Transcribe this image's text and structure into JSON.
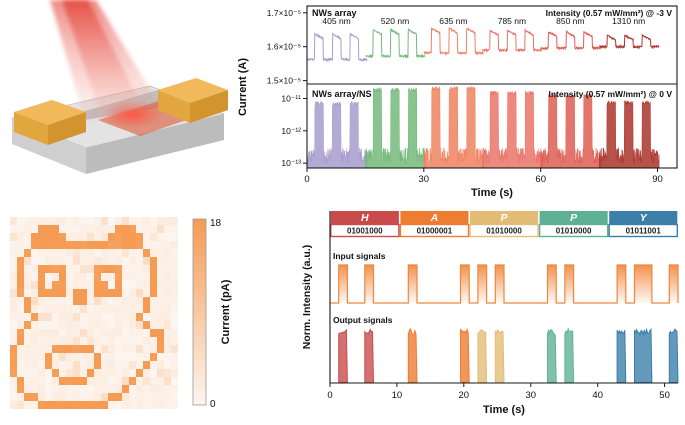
{
  "panel_a": {
    "colors": {
      "beam_top": "#e23c31",
      "beam_bottom": "#f6a99f",
      "glow": "#ff4d3a",
      "substrate_top": "#e3e3e3",
      "substrate_front": "#bcbcbc",
      "substrate_side": "#cfcfcf",
      "electrode_top": "#f2b95c",
      "electrode_front": "#d2952e",
      "electrode_side": "#e2a63e",
      "nanowire": "#bdbdbd",
      "film": "#dc4a28"
    }
  },
  "panel_b": {
    "ylabel": "Current (A)",
    "xlabel": "Time (s)",
    "x_ticks": [
      0,
      30,
      60,
      90
    ],
    "x_max": 95,
    "top": {
      "series_label": "NWs array",
      "annotation": "Intensity (0.57 mW/mm²) @ -3 V",
      "y_tick_labels": [
        "1.7×10⁻⁵",
        "1.6×10⁻⁵",
        "1.5×10⁻⁵"
      ],
      "y_tick_values": [
        1.7,
        1.6,
        1.5
      ]
    },
    "bottom": {
      "series_label": "NWs array/NS",
      "annotation": "Intensity (0.57 mW/mm²) @ 0 V",
      "y_tick_labels": [
        "10⁻¹¹",
        "10⁻¹²",
        "10⁻¹³"
      ],
      "y_tick_exponents": [
        -11,
        -12,
        -13
      ]
    },
    "pulse_on_s": 2.2,
    "pulse_off_s": 2.3,
    "pulses_per_group": 3,
    "groups": [
      {
        "label": "405 nm",
        "color": "#a79cce",
        "start": 2,
        "top_base": 1.562,
        "top_peak": 1.638,
        "bottom_peak_A": 7e-12
      },
      {
        "label": "520 nm",
        "color": "#74b87a",
        "start": 17,
        "top_base": 1.572,
        "top_peak": 1.65,
        "bottom_peak_A": 1.9e-11
      },
      {
        "label": "635 nm",
        "color": "#ef8261",
        "start": 32,
        "top_base": 1.582,
        "top_peak": 1.654,
        "bottom_peak_A": 2.1e-11
      },
      {
        "label": "785 nm",
        "color": "#ea7468",
        "start": 47,
        "top_base": 1.59,
        "top_peak": 1.648,
        "bottom_peak_A": 1.5e-11
      },
      {
        "label": "850 nm",
        "color": "#de5e52",
        "start": 62,
        "top_base": 1.596,
        "top_peak": 1.644,
        "bottom_peak_A": 1.2e-11
      },
      {
        "label": "1310 nm",
        "color": "#ac352c",
        "start": 77,
        "top_base": 1.6,
        "top_peak": 1.634,
        "bottom_peak_A": 7.5e-12
      }
    ]
  },
  "panel_c": {
    "colorbar_label": "Current (pA)",
    "colorbar_max_label": "18",
    "colorbar_min_label": "0",
    "value_max": 18,
    "value_min": 0,
    "color_high": "#f59b53",
    "color_low": "#fdf5ef",
    "grid": [
      "........................",
      "....###........###......",
      "...#####......#####.....",
      "...################.....",
      "..#................#....",
      ".#..................#...",
      ".#..####....####....#...",
      ".#..#..#....#..#....#...",
      ".#..#.##....##.#....#...",
      ".#..####.##.####....#...",
      "..#......##........#....",
      "..#................#....",
      "...#..............#.....",
      "..#................#....",
      ".#..................##..",
      ".#...................#..",
      "#.....######.........#..",
      "#....#......#.......#...",
      "#....#......#......#....",
      "#.....#....#......#.....",
      ".#.....####......#......",
      ".#..............#.......",
      "..##..........##........",
      "....##########.........."
    ]
  },
  "panel_d": {
    "ylabel": "Norm. Intensity (a.u.)",
    "xlabel": "Time (s)",
    "x_ticks": [
      0,
      10,
      20,
      30,
      40,
      50
    ],
    "x_max": 52,
    "bit_duration_s": 1.3,
    "letter_duration_s": 10.4,
    "input_label": "Input signals",
    "output_label": "Output signals",
    "input_color": "#f0863a",
    "letters": [
      {
        "char": "H",
        "code": "01001000",
        "color": "#c94c4c"
      },
      {
        "char": "A",
        "code": "01000001",
        "color": "#ee7c31"
      },
      {
        "char": "P",
        "code": "01010000",
        "color": "#e3bd75"
      },
      {
        "char": "P",
        "code": "01010000",
        "color": "#5fb194"
      },
      {
        "char": "Y",
        "code": "01011001",
        "color": "#3c7fa9"
      }
    ]
  },
  "chart_data": [
    {
      "type": "line",
      "xlabel": "Time (s)",
      "ylabel": "Current (A)",
      "x_range": [
        0,
        95
      ],
      "x_ticks": [
        0,
        30,
        60,
        90
      ],
      "top_panel_label": "NWs array",
      "top_panel_annotation": "Intensity (0.57 mW/mm²) @ -3 V",
      "top_y_ticks": [
        "1.7×10⁻⁵",
        "1.6×10⁻⁵",
        "1.5×10⁻⁵"
      ],
      "bottom_panel_label": "NWs array/NS",
      "bottom_panel_annotation": "Intensity (0.57 mW/mm²) @ 0 V",
      "bottom_y_ticks": [
        "10⁻¹¹",
        "10⁻¹²",
        "10⁻¹³"
      ],
      "series": [
        {
          "name": "405 nm",
          "pulse_starts": [
            2,
            6.5,
            11
          ],
          "top_peak_A": 1.638e-05,
          "bottom_peak_A": 7e-12
        },
        {
          "name": "520 nm",
          "pulse_starts": [
            17,
            21.5,
            26
          ],
          "top_peak_A": 1.65e-05,
          "bottom_peak_A": 1.9e-11
        },
        {
          "name": "635 nm",
          "pulse_starts": [
            32,
            36.5,
            41
          ],
          "top_peak_A": 1.654e-05,
          "bottom_peak_A": 2.1e-11
        },
        {
          "name": "785 nm",
          "pulse_starts": [
            47,
            51.5,
            56
          ],
          "top_peak_A": 1.648e-05,
          "bottom_peak_A": 1.5e-11
        },
        {
          "name": "850 nm",
          "pulse_starts": [
            62,
            66.5,
            71
          ],
          "top_peak_A": 1.644e-05,
          "bottom_peak_A": 1.2e-11
        },
        {
          "name": "1310 nm",
          "pulse_starts": [
            77,
            81.5,
            86
          ],
          "top_peak_A": 1.634e-05,
          "bottom_peak_A": 7.5e-12
        }
      ]
    },
    {
      "type": "heatmap",
      "colorbar_label": "Current (pA)",
      "value_range": [
        0,
        18
      ]
    },
    {
      "type": "line",
      "xlabel": "Time (s)",
      "ylabel": "Norm. Intensity (a.u.)",
      "x_range": [
        0,
        52
      ],
      "x_ticks": [
        0,
        10,
        20,
        30,
        40,
        50
      ],
      "rows": [
        "Input signals",
        "Output signals"
      ],
      "letters": [
        "H",
        "A",
        "P",
        "P",
        "Y"
      ],
      "codes": [
        "01001000",
        "01000001",
        "01010000",
        "01010000",
        "01011001"
      ]
    }
  ]
}
